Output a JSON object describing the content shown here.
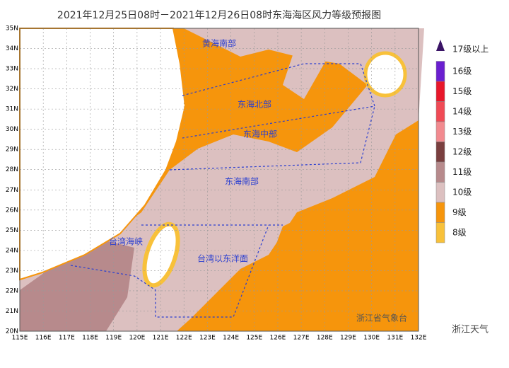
{
  "header": {
    "title": "2021年12月25日08时－2021年12月26日08时东海海区风力等级预报图"
  },
  "map": {
    "lat_labels": [
      "35N",
      "34N",
      "33N",
      "32N",
      "31N",
      "30N",
      "29N",
      "28N",
      "27N",
      "26N",
      "25N",
      "24N",
      "23N",
      "22N",
      "21N",
      "20N"
    ],
    "lon_labels": [
      "115E",
      "116E",
      "117E",
      "118E",
      "119E",
      "120E",
      "121E",
      "122E",
      "123E",
      "124E",
      "125E",
      "126E",
      "127E",
      "128E",
      "129E",
      "130E",
      "131E",
      "132E"
    ],
    "regions": [
      "黄海南部",
      "东海北部",
      "东海中部",
      "东海南部",
      "台湾海峡",
      "台湾以东洋面"
    ],
    "source": "浙江省气象台"
  },
  "legend": [
    {
      "label": "17级以上",
      "color": "#3a1466"
    },
    {
      "label": "16级",
      "color": "#6a1fd0"
    },
    {
      "label": "15级",
      "color": "#e8172a"
    },
    {
      "label": "14级",
      "color": "#f04a55"
    },
    {
      "label": "13级",
      "color": "#f28a8f"
    },
    {
      "label": "12级",
      "color": "#7a3f3f"
    },
    {
      "label": "11级",
      "color": "#b78a8c"
    },
    {
      "label": "10级",
      "color": "#dcc0c0"
    },
    {
      "label": "9级",
      "color": "#f6950c"
    },
    {
      "label": "8级",
      "color": "#f8c13a"
    }
  ],
  "watermark": "浙江天气"
}
